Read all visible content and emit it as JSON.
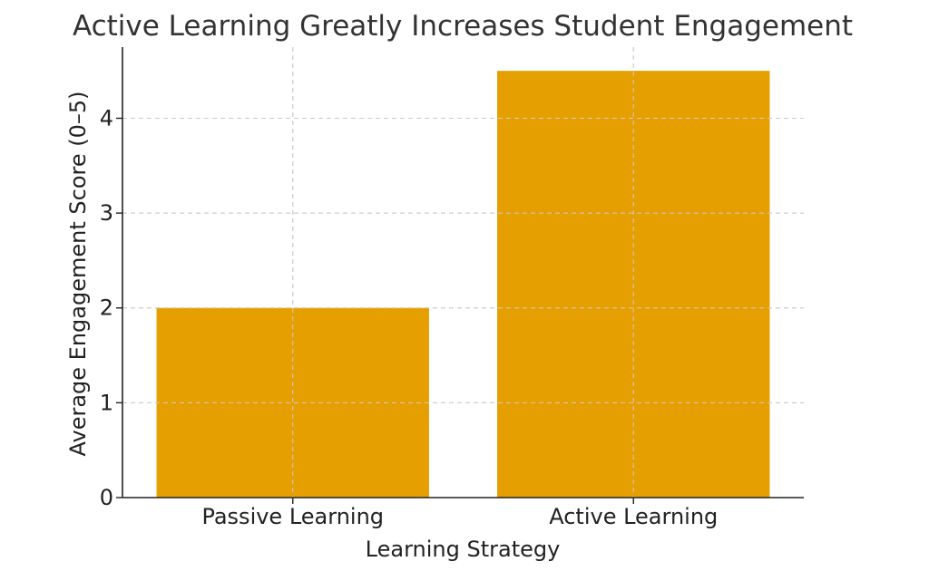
{
  "chart_data": {
    "type": "bar",
    "title": "Active Learning Greatly Increases Student Engagement",
    "xlabel": "Learning Strategy",
    "ylabel": "Average Engagement Score (0–5)",
    "categories": [
      "Passive Learning",
      "Active Learning"
    ],
    "values": [
      2.0,
      4.5
    ],
    "ylim": [
      0,
      4.75
    ],
    "yticks": [
      0,
      1,
      2,
      3,
      4
    ],
    "grid": true,
    "bar_color": "#E69F00"
  }
}
